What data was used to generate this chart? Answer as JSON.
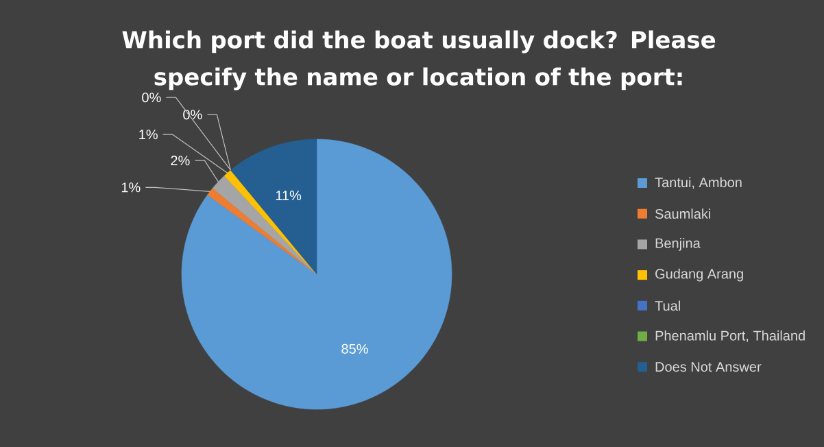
{
  "chart_data": {
    "type": "pie",
    "title": "Which port did the boat usually dock? Please specify the name or location of the port:",
    "categories": [
      "Tantui, Ambon",
      "Saumlaki",
      "Benjina",
      "Gudang Arang",
      "Tual",
      "Phenamlu Port, Thailand",
      "Does Not Answer"
    ],
    "values": [
      85,
      1,
      2,
      1,
      0,
      0,
      11
    ],
    "value_labels": [
      "85%",
      "1%",
      "2%",
      "1%",
      "0%",
      "0%",
      "11%"
    ],
    "colors": [
      "#5b9bd5",
      "#ed7d31",
      "#a5a5a5",
      "#ffc000",
      "#4472c4",
      "#70ad47",
      "#255e91"
    ],
    "legend": "right"
  }
}
